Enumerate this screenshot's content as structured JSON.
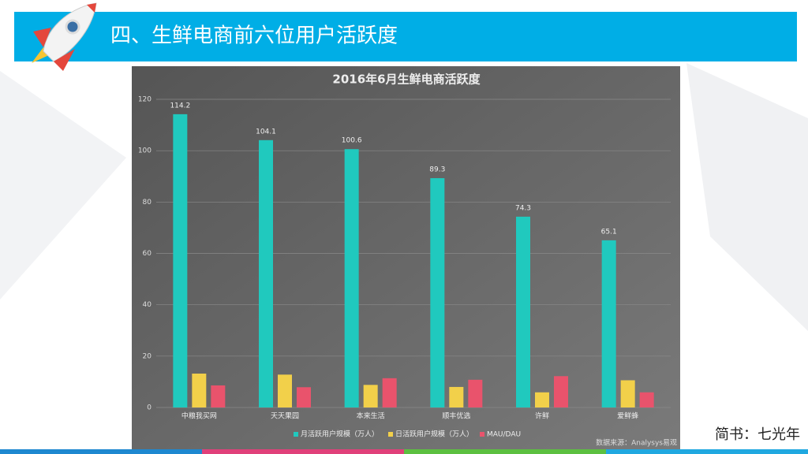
{
  "header": {
    "title": "四、生鲜电商前六位用户活跃度"
  },
  "chart_data": {
    "type": "bar",
    "title": "2016年6月生鲜电商活跃度",
    "categories": [
      "中粮我买网",
      "天天果园",
      "本来生活",
      "顺丰优选",
      "许鲜",
      "爱鲜蜂"
    ],
    "series": [
      {
        "name": "月活跃用户规模（万人）",
        "color": "#20c9be",
        "values": [
          114.2,
          104.1,
          100.6,
          89.3,
          74.3,
          65.1
        ]
      },
      {
        "name": "日活跃用户规模（万人）",
        "color": "#f2d04a",
        "values": [
          13.2,
          12.8,
          8.8,
          8.0,
          5.9,
          10.6
        ]
      },
      {
        "name": "MAU/DAU",
        "color": "#e9536c",
        "values": [
          8.6,
          7.9,
          11.4,
          10.8,
          12.2,
          5.9
        ]
      }
    ],
    "labeled_series": 0,
    "ylim": [
      0,
      120
    ],
    "yticks": [
      0,
      20,
      40,
      60,
      80,
      100,
      120
    ],
    "grid": true,
    "legend": "bottom",
    "source": "数据来源：Analysys易观"
  },
  "footer": {
    "credit": "简书：七光年"
  }
}
